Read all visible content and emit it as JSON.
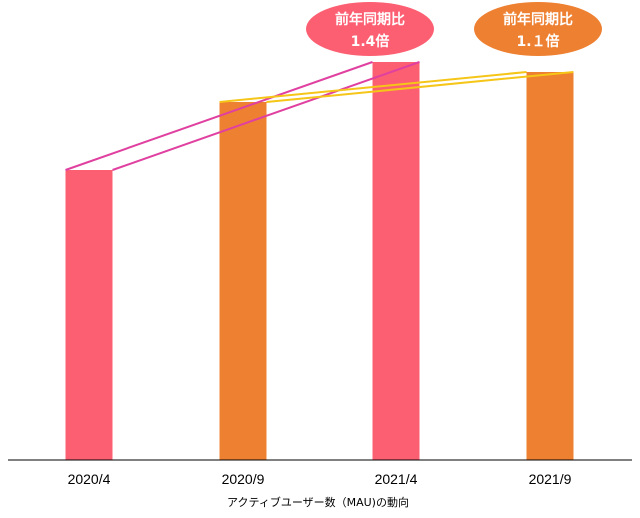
{
  "chart_data": {
    "type": "bar",
    "categories": [
      "2020/4",
      "2020/9",
      "2021/4",
      "2021/9"
    ],
    "values": [
      290,
      358,
      398,
      388
    ],
    "ylim": [
      0,
      400
    ],
    "xlabel": "アクティブユーザー数（MAU)の動向",
    "grid": false,
    "bar_colors": [
      "#fd5f72",
      "#ee8032",
      "#fd5f72",
      "#ee8032"
    ],
    "comparisons": [
      {
        "from": 0,
        "to": 2,
        "line_color": "#e040a0",
        "bubble_color": "#fd5f72",
        "label_line1": "前年同期比",
        "label_line2": "1.4倍"
      },
      {
        "from": 1,
        "to": 3,
        "line_color": "#f5c518",
        "bubble_color": "#ee8032",
        "label_line1": "前年同期比",
        "label_line2": "1.１倍"
      }
    ]
  }
}
